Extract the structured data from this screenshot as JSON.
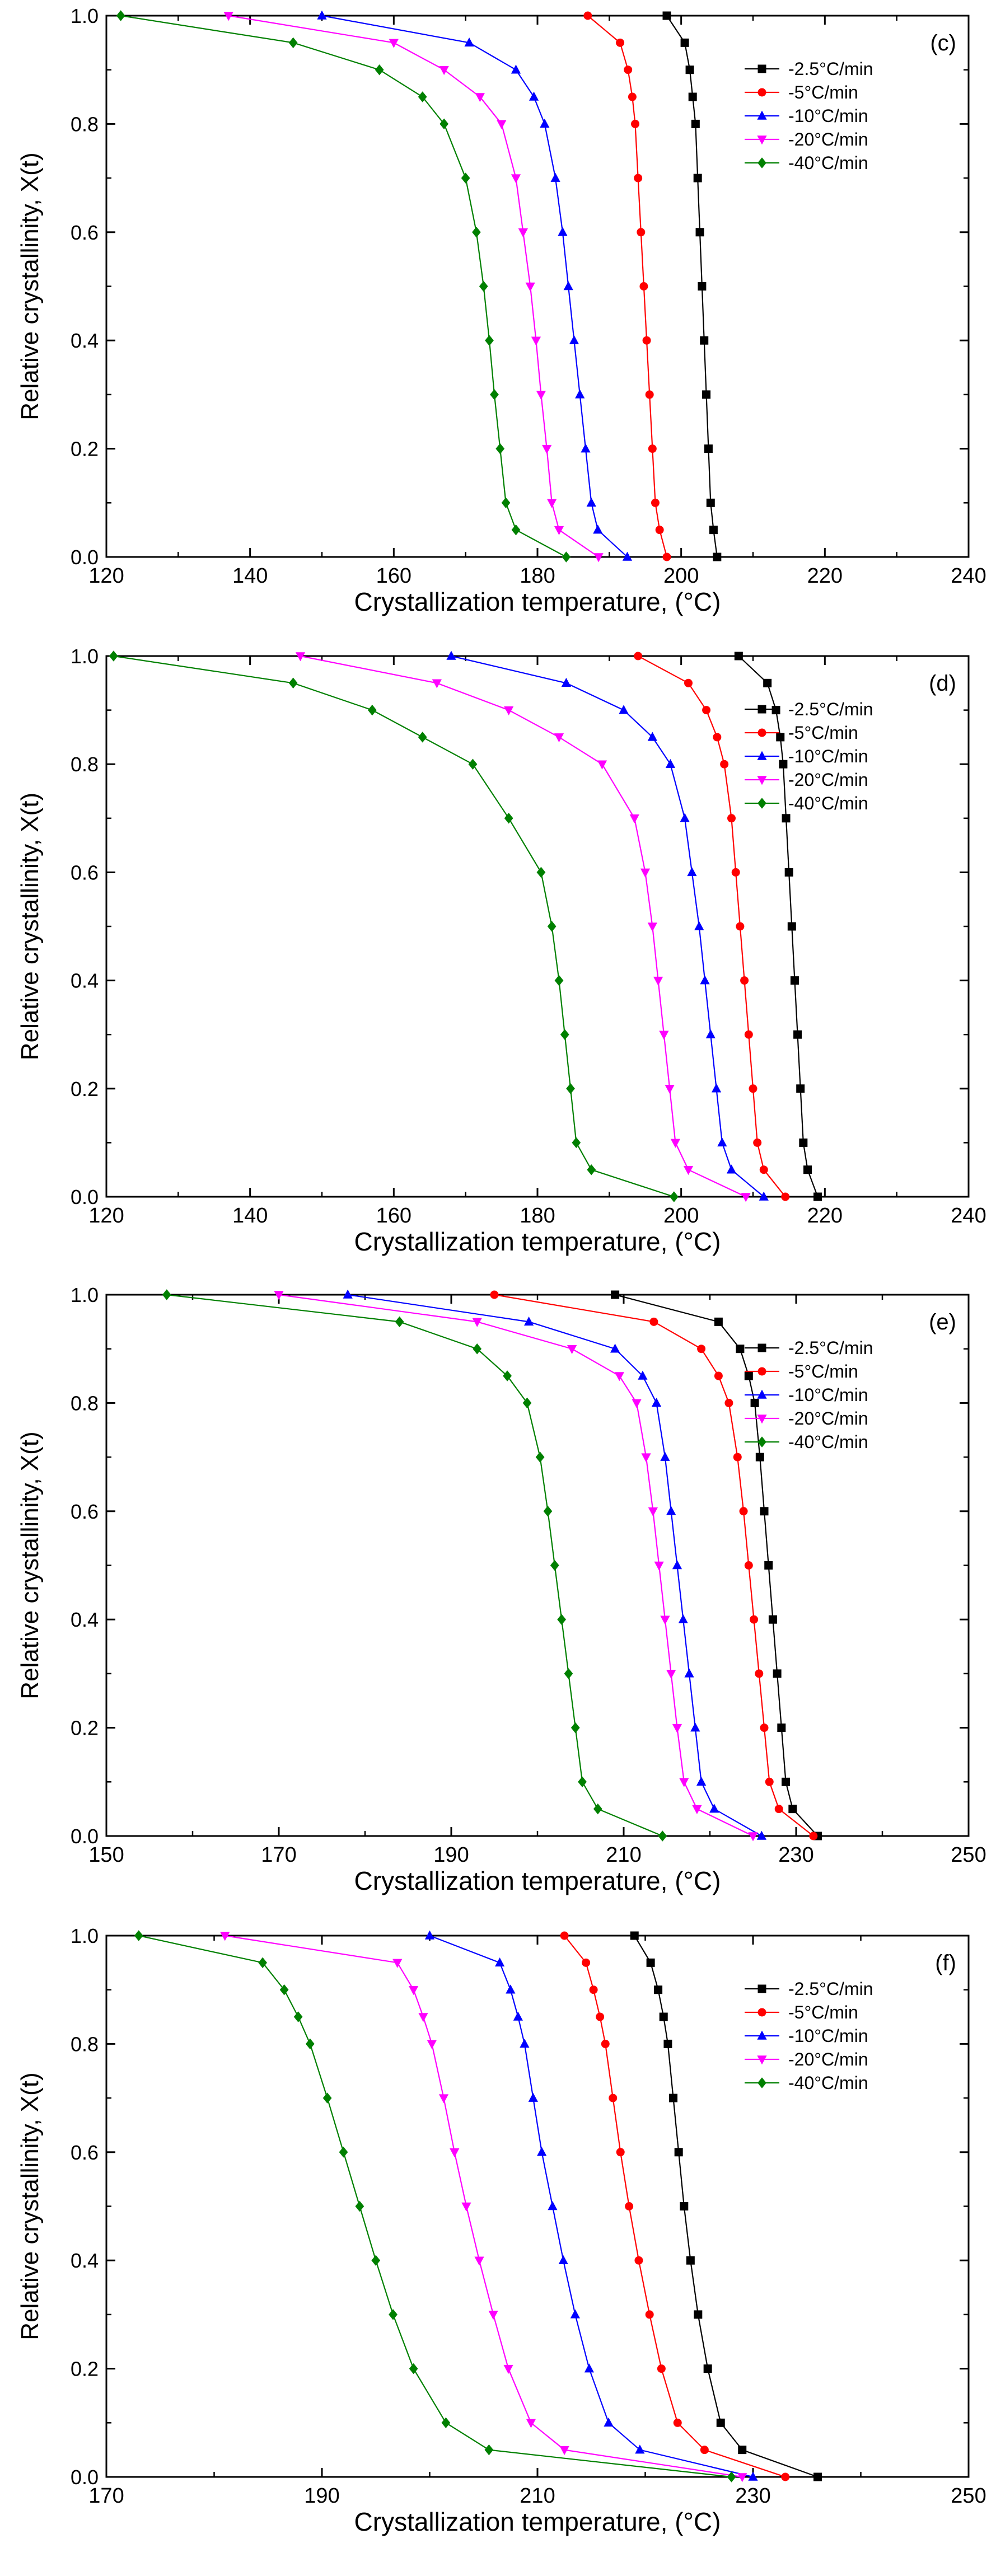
{
  "chart_data": [
    {
      "type": "line",
      "panel_label": "(c)",
      "xlabel": "Crystallization temperature, (°C)",
      "ylabel": "Relative crystallinity, X(t)",
      "xlim": [
        120,
        240
      ],
      "ylim": [
        0,
        1.0
      ],
      "xticks": [
        120,
        140,
        160,
        180,
        200,
        220,
        240
      ],
      "yticks": [
        0.0,
        0.2,
        0.4,
        0.6,
        0.8,
        1.0
      ],
      "grid": false,
      "legend_position": "top-right",
      "series": [
        {
          "name": "-2.5°C/min",
          "marker": "square",
          "color": "#000000",
          "x": [
            198,
            200.5,
            201.2,
            201.6,
            202.0,
            202.3,
            202.6,
            202.9,
            203.2,
            203.5,
            203.8,
            204.1,
            204.5,
            205.0
          ],
          "y": [
            1.0,
            0.95,
            0.9,
            0.85,
            0.8,
            0.7,
            0.6,
            0.5,
            0.4,
            0.3,
            0.2,
            0.1,
            0.05,
            0.0
          ]
        },
        {
          "name": "-5°C/min",
          "marker": "circle",
          "color": "#ff0000",
          "x": [
            187,
            191.5,
            192.6,
            193.2,
            193.6,
            194.0,
            194.4,
            194.8,
            195.2,
            195.6,
            196.0,
            196.4,
            197.0,
            198.0
          ],
          "y": [
            1.0,
            0.95,
            0.9,
            0.85,
            0.8,
            0.7,
            0.6,
            0.5,
            0.4,
            0.3,
            0.2,
            0.1,
            0.05,
            0.0
          ]
        },
        {
          "name": "-10°C/min",
          "marker": "triangle-up",
          "color": "#0000ff",
          "x": [
            150,
            170.5,
            177,
            179.5,
            181,
            182.5,
            183.5,
            184.3,
            185.1,
            185.9,
            186.7,
            187.5,
            188.4,
            192.5
          ],
          "y": [
            1.0,
            0.95,
            0.9,
            0.85,
            0.8,
            0.7,
            0.6,
            0.5,
            0.4,
            0.3,
            0.2,
            0.1,
            0.05,
            0.0
          ]
        },
        {
          "name": "-20°C/min",
          "marker": "triangle-down",
          "color": "#ff00ff",
          "x": [
            137,
            160,
            167,
            172,
            175,
            177,
            178,
            179,
            179.8,
            180.5,
            181.3,
            182,
            183,
            188.5
          ],
          "y": [
            1.0,
            0.95,
            0.9,
            0.85,
            0.8,
            0.7,
            0.6,
            0.5,
            0.4,
            0.3,
            0.2,
            0.1,
            0.05,
            0.0
          ]
        },
        {
          "name": "-40°C/min",
          "marker": "diamond",
          "color": "#008000",
          "x": [
            122,
            146,
            158,
            164,
            167,
            170,
            171.5,
            172.5,
            173.3,
            174,
            174.8,
            175.6,
            177,
            184
          ],
          "y": [
            1.0,
            0.95,
            0.9,
            0.85,
            0.8,
            0.7,
            0.6,
            0.5,
            0.4,
            0.3,
            0.2,
            0.1,
            0.05,
            0.0
          ]
        }
      ]
    },
    {
      "type": "line",
      "panel_label": "(d)",
      "xlabel": "Crystallization temperature, (°C)",
      "ylabel": "Relative crystallinity, X(t)",
      "xlim": [
        120,
        240
      ],
      "ylim": [
        0,
        1.0
      ],
      "xticks": [
        120,
        140,
        160,
        180,
        200,
        220,
        240
      ],
      "yticks": [
        0.0,
        0.2,
        0.4,
        0.6,
        0.8,
        1.0
      ],
      "grid": false,
      "legend_position": "top-right",
      "series": [
        {
          "name": "-2.5°C/min",
          "marker": "square",
          "color": "#000000",
          "x": [
            208,
            212,
            213.2,
            213.8,
            214.2,
            214.6,
            215,
            215.4,
            215.8,
            216.2,
            216.6,
            217,
            217.6,
            219
          ],
          "y": [
            1.0,
            0.95,
            0.9,
            0.85,
            0.8,
            0.7,
            0.6,
            0.5,
            0.4,
            0.3,
            0.2,
            0.1,
            0.05,
            0.0
          ]
        },
        {
          "name": "-5°C/min",
          "marker": "circle",
          "color": "#ff0000",
          "x": [
            194,
            201,
            203.5,
            205,
            206,
            207,
            207.6,
            208.2,
            208.8,
            209.4,
            210,
            210.6,
            211.5,
            214.5
          ],
          "y": [
            1.0,
            0.95,
            0.9,
            0.85,
            0.8,
            0.7,
            0.6,
            0.5,
            0.4,
            0.3,
            0.2,
            0.1,
            0.05,
            0.0
          ]
        },
        {
          "name": "-10°C/min",
          "marker": "triangle-up",
          "color": "#0000ff",
          "x": [
            168,
            184,
            192,
            196,
            198.5,
            200.5,
            201.5,
            202.5,
            203.3,
            204.1,
            204.9,
            205.7,
            207,
            211.5
          ],
          "y": [
            1.0,
            0.95,
            0.9,
            0.85,
            0.8,
            0.7,
            0.6,
            0.5,
            0.4,
            0.3,
            0.2,
            0.1,
            0.05,
            0.0
          ]
        },
        {
          "name": "-20°C/min",
          "marker": "triangle-down",
          "color": "#ff00ff",
          "x": [
            147,
            166,
            176,
            183,
            189,
            193.5,
            195,
            196,
            196.8,
            197.6,
            198.4,
            199.2,
            201,
            209
          ],
          "y": [
            1.0,
            0.95,
            0.9,
            0.85,
            0.8,
            0.7,
            0.6,
            0.5,
            0.4,
            0.3,
            0.2,
            0.1,
            0.05,
            0.0
          ]
        },
        {
          "name": "-40°C/min",
          "marker": "diamond",
          "color": "#008000",
          "x": [
            121,
            146,
            157,
            164,
            171,
            176,
            180.5,
            182,
            183,
            183.8,
            184.6,
            185.4,
            187.5,
            199
          ],
          "y": [
            1.0,
            0.95,
            0.9,
            0.85,
            0.8,
            0.7,
            0.6,
            0.5,
            0.4,
            0.3,
            0.2,
            0.1,
            0.05,
            0.0
          ]
        }
      ]
    },
    {
      "type": "line",
      "panel_label": "(e)",
      "xlabel": "Crystallization temperature, (°C)",
      "ylabel": "Relative crystallinity, X(t)",
      "xlim": [
        150,
        250
      ],
      "ylim": [
        0,
        1.0
      ],
      "xticks": [
        150,
        170,
        190,
        210,
        230,
        250
      ],
      "yticks": [
        0.0,
        0.2,
        0.4,
        0.6,
        0.8,
        1.0
      ],
      "grid": false,
      "legend_position": "top-right",
      "series": [
        {
          "name": "-2.5°C/min",
          "marker": "square",
          "color": "#000000",
          "x": [
            209,
            221,
            223.5,
            224.5,
            225.2,
            225.8,
            226.3,
            226.8,
            227.3,
            227.8,
            228.3,
            228.8,
            229.6,
            232.5
          ],
          "y": [
            1.0,
            0.95,
            0.9,
            0.85,
            0.8,
            0.7,
            0.6,
            0.5,
            0.4,
            0.3,
            0.2,
            0.1,
            0.05,
            0.0
          ]
        },
        {
          "name": "-5°C/min",
          "marker": "circle",
          "color": "#ff0000",
          "x": [
            195,
            213.5,
            219,
            221,
            222.2,
            223.2,
            223.9,
            224.5,
            225.1,
            225.7,
            226.3,
            226.9,
            228,
            232
          ],
          "y": [
            1.0,
            0.95,
            0.9,
            0.85,
            0.8,
            0.7,
            0.6,
            0.5,
            0.4,
            0.3,
            0.2,
            0.1,
            0.05,
            0.0
          ]
        },
        {
          "name": "-10°C/min",
          "marker": "triangle-up",
          "color": "#0000ff",
          "x": [
            178,
            199,
            209,
            212.2,
            213.8,
            214.8,
            215.5,
            216.2,
            216.9,
            217.6,
            218.3,
            219,
            220.5,
            226
          ],
          "y": [
            1.0,
            0.95,
            0.9,
            0.85,
            0.8,
            0.7,
            0.6,
            0.5,
            0.4,
            0.3,
            0.2,
            0.1,
            0.05,
            0.0
          ]
        },
        {
          "name": "-20°C/min",
          "marker": "triangle-down",
          "color": "#ff00ff",
          "x": [
            170,
            193,
            204,
            209.5,
            211.5,
            212.6,
            213.4,
            214.1,
            214.8,
            215.5,
            216.2,
            217,
            218.5,
            225
          ],
          "y": [
            1.0,
            0.95,
            0.9,
            0.85,
            0.8,
            0.7,
            0.6,
            0.5,
            0.4,
            0.3,
            0.2,
            0.1,
            0.05,
            0.0
          ]
        },
        {
          "name": "-40°C/min",
          "marker": "diamond",
          "color": "#008000",
          "x": [
            157,
            184,
            193,
            196.5,
            198.8,
            200.3,
            201.2,
            202,
            202.8,
            203.6,
            204.4,
            205.2,
            207,
            214.5
          ],
          "y": [
            1.0,
            0.95,
            0.9,
            0.85,
            0.8,
            0.7,
            0.6,
            0.5,
            0.4,
            0.3,
            0.2,
            0.1,
            0.05,
            0.0
          ]
        }
      ]
    },
    {
      "type": "line",
      "panel_label": "(f)",
      "xlabel": "Crystallization temperature, (°C)",
      "ylabel": "Relative crystallinity, X(t)",
      "xlim": [
        170,
        250
      ],
      "ylim": [
        0,
        1.0
      ],
      "xticks": [
        170,
        190,
        210,
        230,
        250
      ],
      "yticks": [
        0.0,
        0.2,
        0.4,
        0.6,
        0.8,
        1.0
      ],
      "grid": false,
      "legend_position": "top-right",
      "series": [
        {
          "name": "-2.5°C/min",
          "marker": "square",
          "color": "#000000",
          "x": [
            219,
            220.5,
            221.2,
            221.7,
            222.1,
            222.6,
            223.1,
            223.6,
            224.2,
            224.9,
            225.8,
            227,
            229,
            236
          ],
          "y": [
            1.0,
            0.95,
            0.9,
            0.85,
            0.8,
            0.7,
            0.6,
            0.5,
            0.4,
            0.3,
            0.2,
            0.1,
            0.05,
            0.0
          ]
        },
        {
          "name": "-5°C/min",
          "marker": "circle",
          "color": "#ff0000",
          "x": [
            212.5,
            214.5,
            215.2,
            215.8,
            216.3,
            217,
            217.7,
            218.5,
            219.4,
            220.4,
            221.5,
            223,
            225.5,
            233
          ],
          "y": [
            1.0,
            0.95,
            0.9,
            0.85,
            0.8,
            0.7,
            0.6,
            0.5,
            0.4,
            0.3,
            0.2,
            0.1,
            0.05,
            0.0
          ]
        },
        {
          "name": "-10°C/min",
          "marker": "triangle-up",
          "color": "#0000ff",
          "x": [
            200,
            206.5,
            207.5,
            208.2,
            208.8,
            209.6,
            210.4,
            211.4,
            212.4,
            213.5,
            214.8,
            216.6,
            219.5,
            230
          ],
          "y": [
            1.0,
            0.95,
            0.9,
            0.85,
            0.8,
            0.7,
            0.6,
            0.5,
            0.4,
            0.3,
            0.2,
            0.1,
            0.05,
            0.0
          ]
        },
        {
          "name": "-20°C/min",
          "marker": "triangle-down",
          "color": "#ff00ff",
          "x": [
            181,
            197,
            198.5,
            199.4,
            200.2,
            201.3,
            202.3,
            203.4,
            204.6,
            205.9,
            207.3,
            209.4,
            212.5,
            229
          ],
          "y": [
            1.0,
            0.95,
            0.9,
            0.85,
            0.8,
            0.7,
            0.6,
            0.5,
            0.4,
            0.3,
            0.2,
            0.1,
            0.05,
            0.0
          ]
        },
        {
          "name": "-40°C/min",
          "marker": "diamond",
          "color": "#008000",
          "x": [
            173,
            184.5,
            186.5,
            187.8,
            188.9,
            190.5,
            192,
            193.5,
            195,
            196.6,
            198.5,
            201.5,
            205.5,
            228
          ],
          "y": [
            1.0,
            0.95,
            0.9,
            0.85,
            0.8,
            0.7,
            0.6,
            0.5,
            0.4,
            0.3,
            0.2,
            0.1,
            0.05,
            0.0
          ]
        }
      ]
    }
  ]
}
